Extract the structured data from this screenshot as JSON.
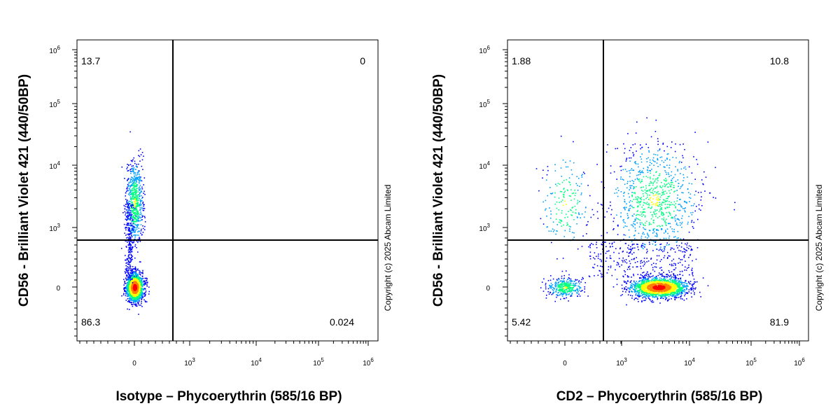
{
  "copyright": "Copyright (c) 2025 Abcam Limited",
  "chart_data": [
    {
      "type": "scatter",
      "subtype": "flow-cytometry-density-dot-plot",
      "xlabel": "Isotype – Phycoerythrin (585/16 BP)",
      "ylabel": "CD56 - Brilliant Violet 421  (440/50BP)",
      "x_scale": "biexponential",
      "y_scale": "biexponential",
      "x_ticks": [
        "0",
        "10^3",
        "10^4",
        "10^5",
        "10^6"
      ],
      "y_ticks": [
        "0",
        "10^3",
        "10^4",
        "10^5",
        "10^6"
      ],
      "gate_x": 520,
      "gate_y": 650,
      "quadrants": {
        "top_left": "13.7",
        "top_right": "0",
        "bottom_left": "86.3",
        "bottom_right": "0.024"
      },
      "populations": [
        {
          "name": "",
          "x_center": 0,
          "y_center": 0,
          "density": "high",
          "share": 0.86
        },
        {
          "name": "",
          "x_center": 0,
          "y_center": 2500,
          "density": "medium",
          "share": 0.14
        }
      ],
      "colormap": [
        "#0000ff",
        "#00a0ff",
        "#00ff80",
        "#ffff00",
        "#ff8000",
        "#ff0000"
      ]
    },
    {
      "type": "scatter",
      "subtype": "flow-cytometry-density-dot-plot",
      "xlabel": "CD2 – Phycoerythrin (585/16 BP)",
      "ylabel": "CD56 - Brilliant Violet 421  (440/50BP)",
      "x_scale": "biexponential",
      "y_scale": "biexponential",
      "x_ticks": [
        "0",
        "10^3",
        "10^4",
        "10^5",
        "10^6"
      ],
      "y_ticks": [
        "0",
        "10^3",
        "10^4",
        "10^5",
        "10^6"
      ],
      "gate_x": 520,
      "gate_y": 650,
      "quadrants": {
        "top_left": "1.88",
        "top_right": "10.8",
        "bottom_left": "5.42",
        "bottom_right": "81.9"
      },
      "populations": [
        {
          "name": "",
          "x_center": 3500,
          "y_center": 0,
          "density": "high",
          "share": 0.82
        },
        {
          "name": "",
          "x_center": 0,
          "y_center": 0,
          "density": "low",
          "share": 0.054
        },
        {
          "name": "",
          "x_center": 3000,
          "y_center": 2800,
          "density": "medium",
          "share": 0.108
        },
        {
          "name": "",
          "x_center": 0,
          "y_center": 2500,
          "density": "low",
          "share": 0.019
        }
      ],
      "colormap": [
        "#0000ff",
        "#00a0ff",
        "#00ff80",
        "#ffff00",
        "#ff8000",
        "#ff0000"
      ]
    }
  ]
}
